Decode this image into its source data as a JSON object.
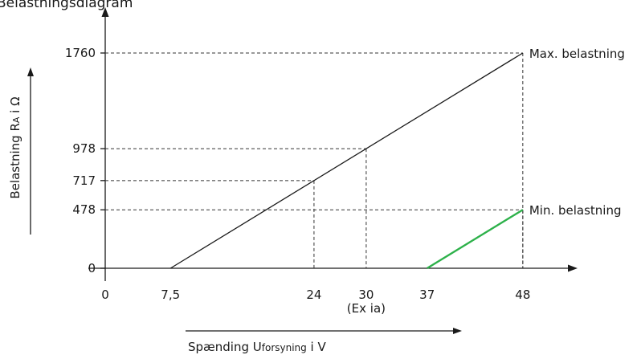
{
  "chart_data": {
    "type": "line",
    "title": "Belastningsdiagram",
    "xlabel": {
      "main": "Spænding U",
      "sub": "forsyning",
      "suffix": " i V"
    },
    "ylabel": {
      "main": "Belastning R",
      "sub": "A",
      "suffix": " i Ω"
    },
    "xlim": [
      0,
      52
    ],
    "ylim": [
      0,
      2050
    ],
    "x_ticks": [
      {
        "value": 0,
        "label": "0"
      },
      {
        "value": 7.5,
        "label": "7,5"
      },
      {
        "value": 24,
        "label": "24"
      },
      {
        "value": 30,
        "label": "30"
      },
      {
        "value": 37,
        "label": "37"
      },
      {
        "value": 48,
        "label": "48"
      }
    ],
    "x_tick_note": {
      "value": 30,
      "label": "(Ex ia)"
    },
    "y_ticks": [
      {
        "value": 0,
        "label": "0"
      },
      {
        "value": 478,
        "label": "478"
      },
      {
        "value": 717,
        "label": "717"
      },
      {
        "value": 978,
        "label": "978"
      },
      {
        "value": 1760,
        "label": "1760"
      }
    ],
    "series": [
      {
        "name": "Max. belastning",
        "color": "#1a1a1a",
        "x": [
          7.5,
          48
        ],
        "y": [
          0,
          1760
        ]
      },
      {
        "name": "Min. belastning",
        "color": "#2db14a",
        "x": [
          37,
          48
        ],
        "y": [
          0,
          478
        ]
      }
    ],
    "guides": [
      {
        "x": 24,
        "y": 717
      },
      {
        "x": 30,
        "y": 978
      },
      {
        "x": 48,
        "y": 478
      },
      {
        "x": 48,
        "y": 1760
      }
    ]
  }
}
